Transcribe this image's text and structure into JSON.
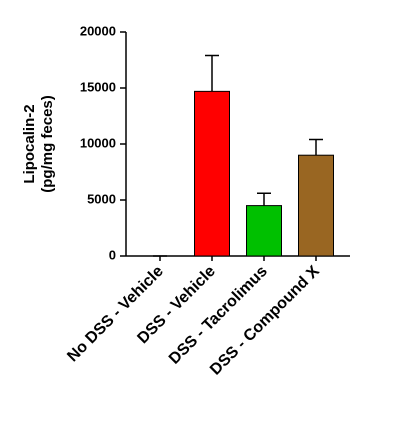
{
  "chart_data": {
    "type": "bar",
    "ylabel": [
      "Lipocalin-2",
      "(pg/mg feces)"
    ],
    "categories": [
      "No DSS - Vehicle",
      "DSS - Vehicle",
      "DSS - Tacrolimus",
      "DSS - Compound X"
    ],
    "values": [
      0,
      14700,
      4500,
      9000
    ],
    "errors": [
      0,
      3200,
      1100,
      1400
    ],
    "colors": [
      "#ffffff",
      "#ff0000",
      "#00c000",
      "#996622"
    ],
    "ylim": [
      0,
      20000
    ],
    "yticks": [
      0,
      5000,
      10000,
      15000,
      20000
    ]
  }
}
